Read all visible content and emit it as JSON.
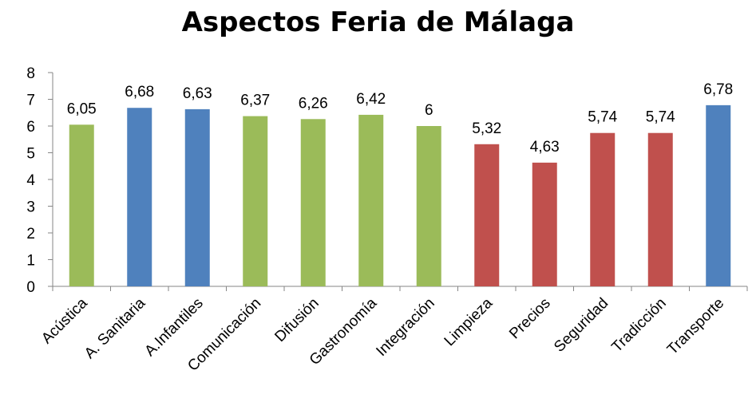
{
  "chart_data": {
    "type": "bar",
    "title": "Aspectos Feria de Málaga",
    "categories": [
      "Acústica",
      "A. Sanitaria",
      "A.Infantiles",
      "Comunicación",
      "Difusión",
      "Gastronomía",
      "Integración",
      "Limpieza",
      "Precios",
      "Seguridad",
      "Tradicción",
      "Transporte"
    ],
    "values": [
      6.05,
      6.68,
      6.63,
      6.37,
      6.26,
      6.42,
      6,
      5.32,
      4.63,
      5.74,
      5.74,
      6.78
    ],
    "value_labels": [
      "6,05",
      "6,68",
      "6,63",
      "6,37",
      "6,26",
      "6,42",
      "6",
      "5,32",
      "4,63",
      "5,74",
      "5,74",
      "6,78"
    ],
    "colors": [
      "#9BBB59",
      "#4F81BD",
      "#4F81BD",
      "#9BBB59",
      "#9BBB59",
      "#9BBB59",
      "#9BBB59",
      "#C0504D",
      "#C0504D",
      "#C0504D",
      "#C0504D",
      "#4F81BD"
    ],
    "y_ticks": [
      "0",
      "1",
      "2",
      "3",
      "4",
      "5",
      "6",
      "7",
      "8"
    ],
    "ylim": [
      0,
      8
    ],
    "xlabel": "",
    "ylabel": "",
    "grid": false,
    "legend": "none"
  }
}
